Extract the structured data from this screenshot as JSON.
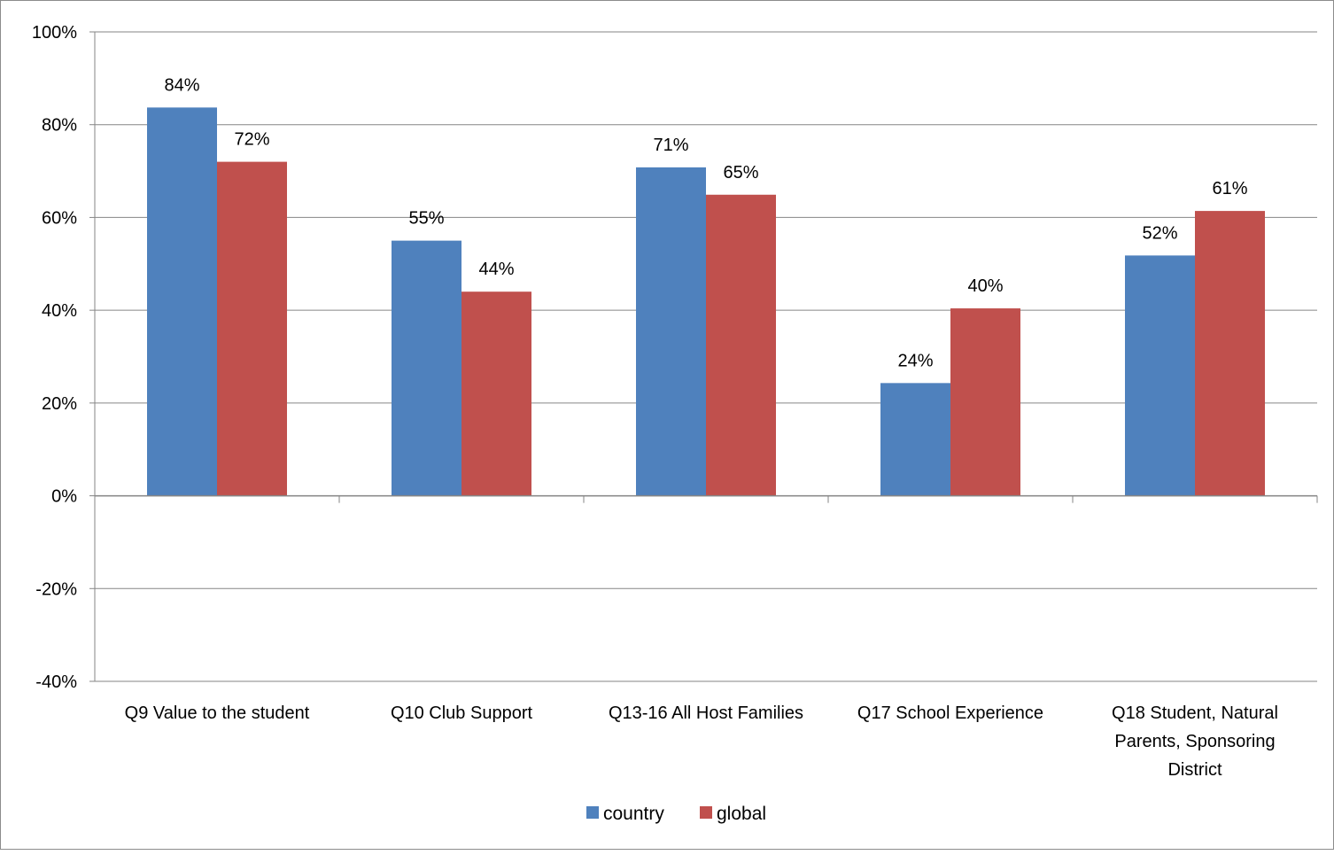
{
  "chart_data": {
    "type": "bar",
    "title": "",
    "xlabel": "",
    "ylabel": "",
    "categories": [
      [
        "Q9 Value to the student"
      ],
      [
        "Q10 Club Support"
      ],
      [
        "Q13-16 All Host Families"
      ],
      [
        "Q17 School Experience"
      ],
      [
        "Q18 Student, Natural",
        "Parents, Sponsoring",
        "District"
      ]
    ],
    "series": [
      {
        "name": "country",
        "color": "#4f81bd",
        "values": [
          0.837,
          0.55,
          0.708,
          0.243,
          0.518
        ],
        "labels": [
          "84%",
          "55%",
          "71%",
          "24%",
          "52%"
        ]
      },
      {
        "name": "global",
        "color": "#c0504d",
        "values": [
          0.72,
          0.44,
          0.649,
          0.404,
          0.614
        ],
        "labels": [
          "72%",
          "44%",
          "65%",
          "40%",
          "61%"
        ]
      }
    ],
    "ylim": [
      -0.4,
      1.0
    ],
    "yticks": [
      1.0,
      0.8,
      0.6,
      0.4,
      0.2,
      0.0,
      -0.2,
      -0.4
    ],
    "ytick_labels": [
      "100%",
      "80%",
      "60%",
      "40%",
      "20%",
      "0%",
      "-20%",
      "-40%"
    ],
    "grid": true,
    "legend_position": "bottom"
  }
}
